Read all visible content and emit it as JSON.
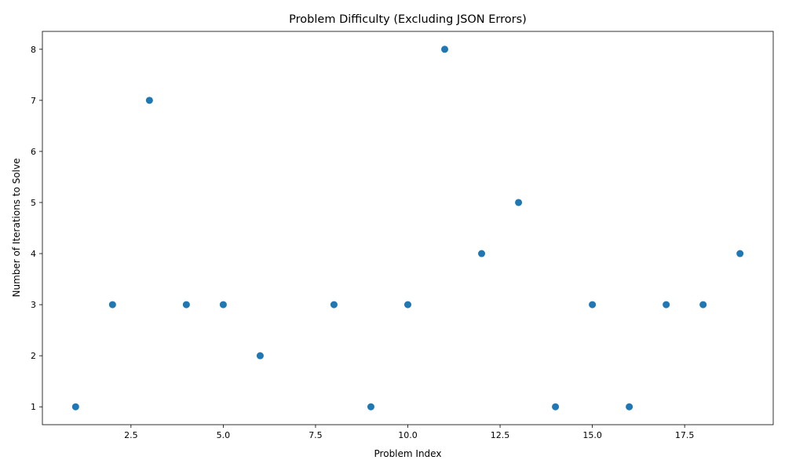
{
  "chart_data": {
    "type": "scatter",
    "title": "Problem Difficulty (Excluding JSON Errors)",
    "xlabel": "Problem Index",
    "ylabel": "Number of Iterations to Solve",
    "x": [
      1,
      2,
      3,
      4,
      5,
      6,
      8,
      9,
      10,
      11,
      12,
      13,
      14,
      15,
      16,
      17,
      18,
      19
    ],
    "y": [
      1,
      3,
      7,
      3,
      3,
      2,
      3,
      1,
      3,
      8,
      4,
      5,
      1,
      3,
      1,
      3,
      3,
      4
    ],
    "xlim": [
      0.1,
      19.9
    ],
    "ylim": [
      0.65,
      8.35
    ],
    "x_ticks": [
      "2.5",
      "5.0",
      "7.5",
      "10.0",
      "12.5",
      "15.0",
      "17.5"
    ],
    "y_ticks": [
      "1",
      "2",
      "3",
      "4",
      "5",
      "6",
      "7",
      "8"
    ],
    "grid": false,
    "marker_color": "#1f77b4"
  }
}
